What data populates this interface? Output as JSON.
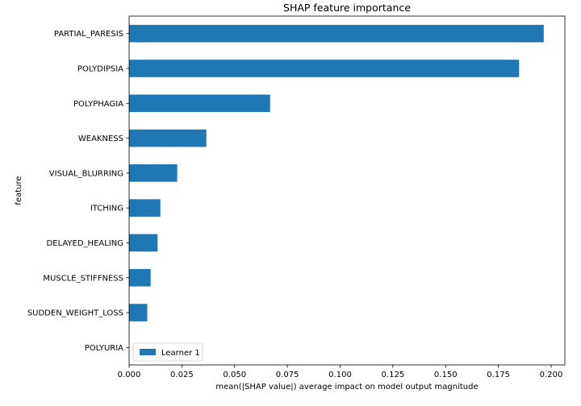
{
  "chart_data": {
    "type": "bar",
    "orientation": "horizontal",
    "title": "SHAP feature importance",
    "xlabel": "mean(|SHAP value|) average impact on model output magnitude",
    "ylabel": "feature",
    "xlim": [
      0,
      0.2065
    ],
    "xticks": [
      "0.000",
      "0.025",
      "0.050",
      "0.075",
      "0.100",
      "0.125",
      "0.150",
      "0.175",
      "0.200"
    ],
    "grid": false,
    "legend_position": "bottom-left",
    "categories": [
      "PARTIAL_PARESIS",
      "POLYDIPSIA",
      "POLYPHAGIA",
      "WEAKNESS",
      "VISUAL_BLURRING",
      "ITCHING",
      "DELAYED_HEALING",
      "MUSCLE_STIFFNESS",
      "SUDDEN_WEIGHT_LOSS",
      "POLYURIA"
    ],
    "series": [
      {
        "name": "Learner 1",
        "color": "#1f77b4",
        "values": [
          0.1965,
          0.1848,
          0.0668,
          0.0366,
          0.0228,
          0.0148,
          0.0135,
          0.0102,
          0.0086,
          0.0
        ]
      }
    ]
  }
}
